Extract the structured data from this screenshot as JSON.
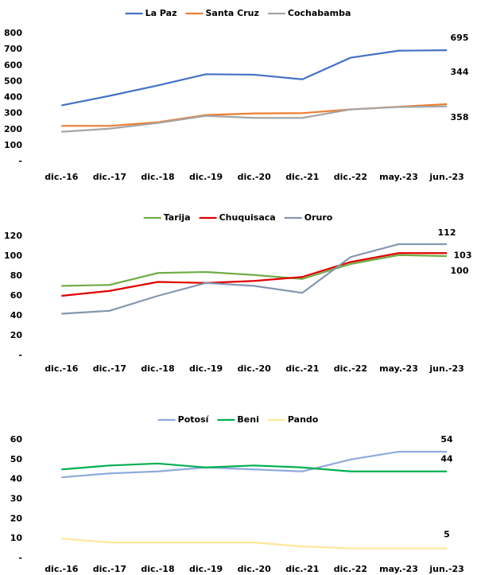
{
  "chart_data": [
    {
      "type": "line",
      "categories": [
        "dic.-16",
        "dic.-17",
        "dic.-18",
        "dic.-19",
        "dic.-20",
        "dic.-21",
        "dic.-22",
        "may.-23",
        "jun.-23"
      ],
      "series": [
        {
          "name": "La Paz",
          "color": "#4472c4",
          "values": [
            350,
            410,
            475,
            545,
            542,
            513,
            648,
            692,
            695
          ]
        },
        {
          "name": "Santa Cruz",
          "color": "#ed7d31",
          "values": [
            222,
            222,
            245,
            290,
            300,
            302,
            325,
            342,
            358
          ]
        },
        {
          "name": "Cochabamba",
          "color": "#a5a5a5",
          "values": [
            185,
            205,
            240,
            285,
            272,
            272,
            325,
            340,
            344
          ]
        }
      ],
      "ylim": [
        0,
        800
      ],
      "yticks": [
        {
          "value": 0,
          "label": "-"
        },
        100,
        200,
        300,
        400,
        500,
        600,
        700,
        800
      ],
      "legend": "top"
    },
    {
      "type": "line",
      "categories": [
        "dic.-16",
        "dic.-17",
        "dic.-18",
        "dic.-19",
        "dic.-20",
        "dic.-21",
        "dic.-22",
        "may.-23",
        "jun.-23"
      ],
      "series": [
        {
          "name": "Tarija",
          "color": "#70ad47",
          "values": [
            70,
            71,
            83,
            84,
            81,
            77,
            92,
            101,
            100
          ]
        },
        {
          "name": "Chuquisaca",
          "color": "#e00000",
          "values": [
            60,
            65,
            74,
            73,
            75,
            79,
            94,
            103,
            103
          ]
        },
        {
          "name": "Oruro",
          "color": "#8497b0",
          "values": [
            42,
            45,
            60,
            73,
            70,
            63,
            99,
            112,
            112
          ]
        }
      ],
      "ylim": [
        0,
        130
      ],
      "yticks": [
        {
          "value": 0,
          "label": "-"
        },
        20,
        40,
        60,
        80,
        100,
        120
      ],
      "legend": "top"
    },
    {
      "type": "line",
      "categories": [
        "dic.-16",
        "dic.-17",
        "dic.-18",
        "dic.-19",
        "dic.-20",
        "dic.-21",
        "dic.-22",
        "may.-23",
        "jun.-23"
      ],
      "series": [
        {
          "name": "Potosí",
          "color": "#8faadc",
          "values": [
            41,
            43,
            44,
            46,
            45,
            44,
            50,
            54,
            54
          ]
        },
        {
          "name": "Beni",
          "color": "#00b050",
          "values": [
            45,
            47,
            48,
            46,
            47,
            46,
            44,
            44,
            44
          ]
        },
        {
          "name": "Pando",
          "color": "#ffe699",
          "values": [
            10,
            8,
            8,
            8,
            8,
            6,
            5,
            5,
            5
          ]
        }
      ],
      "ylim": [
        0,
        65
      ],
      "yticks": [
        {
          "value": 0,
          "label": "-"
        },
        10,
        20,
        30,
        40,
        50,
        60
      ],
      "legend": "top"
    }
  ]
}
